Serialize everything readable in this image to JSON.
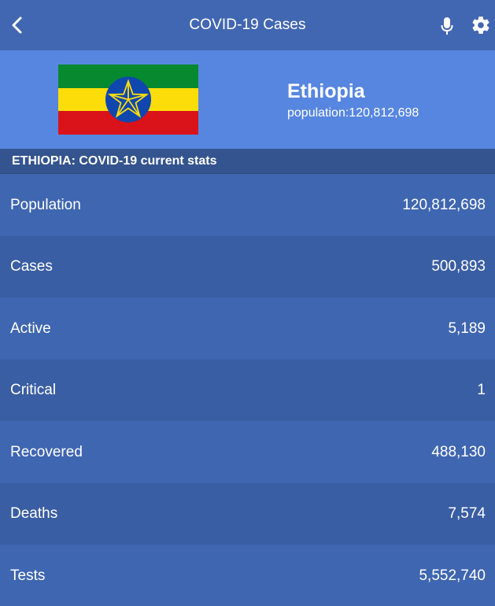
{
  "appbar": {
    "title": "COVID-19 Cases",
    "back_icon": "chevron-left-icon",
    "mic_icon": "microphone-icon",
    "settings_icon": "gear-icon"
  },
  "country": {
    "name": "Ethiopia",
    "population_text": "population:120,812,698",
    "flag_colors": {
      "green": "#078930",
      "yellow": "#fcdd09",
      "red": "#da121a",
      "emblem_blue": "#0f47af",
      "star": "#fcdd09"
    }
  },
  "section": {
    "heading": "ETHIOPIA: COVID-19 current stats"
  },
  "stats": [
    {
      "label": "Population",
      "value": "120,812,698"
    },
    {
      "label": "Cases",
      "value": "500,893"
    },
    {
      "label": "Active",
      "value": "5,189"
    },
    {
      "label": "Critical",
      "value": "1"
    },
    {
      "label": "Recovered",
      "value": "488,130"
    },
    {
      "label": "Deaths",
      "value": "7,574"
    },
    {
      "label": "Tests",
      "value": "5,552,740"
    }
  ],
  "colors": {
    "appbar": "#4267b2",
    "country_header": "#5786e0",
    "section_heading": "#34548f",
    "row_light": "#3f66b0",
    "row_dark": "#3a5ea3"
  }
}
